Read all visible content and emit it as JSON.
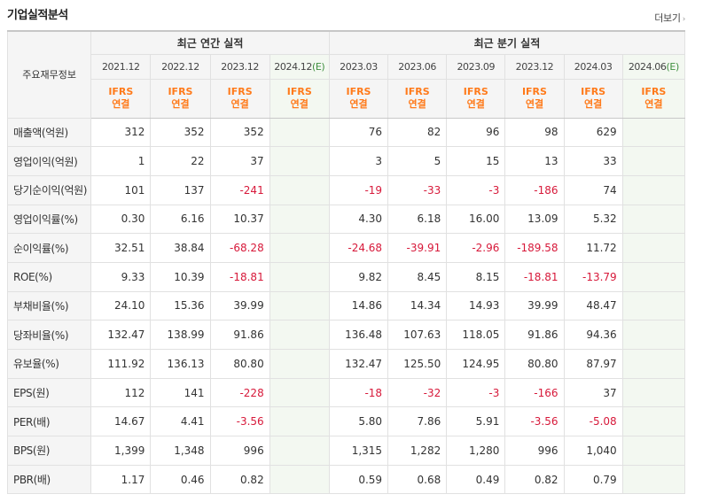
{
  "title": "기업실적분석",
  "more": "더보기",
  "row_header": "주요재무정보",
  "group_annual": "최근 연간 실적",
  "group_quarterly": "최근 분기 실적",
  "periods": [
    {
      "label": "2021.12",
      "est": ""
    },
    {
      "label": "2022.12",
      "est": ""
    },
    {
      "label": "2023.12",
      "est": ""
    },
    {
      "label": "2024.12",
      "est": "(E)"
    },
    {
      "label": "2023.03",
      "est": ""
    },
    {
      "label": "2023.06",
      "est": ""
    },
    {
      "label": "2023.09",
      "est": ""
    },
    {
      "label": "2023.12",
      "est": ""
    },
    {
      "label": "2024.03",
      "est": ""
    },
    {
      "label": "2024.06",
      "est": "(E)"
    }
  ],
  "ifrs_line1": "IFRS",
  "ifrs_line2": "연결",
  "rows": [
    {
      "label": "매출액(억원)",
      "values": [
        "312",
        "352",
        "352",
        "",
        "76",
        "82",
        "96",
        "98",
        "629",
        ""
      ]
    },
    {
      "label": "영업이익(억원)",
      "values": [
        "1",
        "22",
        "37",
        "",
        "3",
        "5",
        "15",
        "13",
        "33",
        ""
      ]
    },
    {
      "label": "당기순이익(억원)",
      "values": [
        "101",
        "137",
        "-241",
        "",
        "-19",
        "-33",
        "-3",
        "-186",
        "74",
        ""
      ]
    },
    {
      "label": "영업이익률(%)",
      "values": [
        "0.30",
        "6.16",
        "10.37",
        "",
        "4.30",
        "6.18",
        "16.00",
        "13.09",
        "5.32",
        ""
      ]
    },
    {
      "label": "순이익률(%)",
      "values": [
        "32.51",
        "38.84",
        "-68.28",
        "",
        "-24.68",
        "-39.91",
        "-2.96",
        "-189.58",
        "11.72",
        ""
      ]
    },
    {
      "label": "ROE(%)",
      "values": [
        "9.33",
        "10.39",
        "-18.81",
        "",
        "9.82",
        "8.45",
        "8.15",
        "-18.81",
        "-13.79",
        ""
      ]
    },
    {
      "label": "부채비율(%)",
      "values": [
        "24.10",
        "15.36",
        "39.99",
        "",
        "14.86",
        "14.34",
        "14.93",
        "39.99",
        "48.47",
        ""
      ]
    },
    {
      "label": "당좌비율(%)",
      "values": [
        "132.47",
        "138.99",
        "91.86",
        "",
        "136.48",
        "107.63",
        "118.05",
        "91.86",
        "94.36",
        ""
      ]
    },
    {
      "label": "유보율(%)",
      "values": [
        "111.92",
        "136.13",
        "80.80",
        "",
        "132.47",
        "125.50",
        "124.95",
        "80.80",
        "87.97",
        ""
      ]
    },
    {
      "label": "EPS(원)",
      "values": [
        "112",
        "141",
        "-228",
        "",
        "-18",
        "-32",
        "-3",
        "-166",
        "37",
        ""
      ]
    },
    {
      "label": "PER(배)",
      "values": [
        "14.67",
        "4.41",
        "-3.56",
        "",
        "5.80",
        "7.86",
        "5.91",
        "-3.56",
        "-5.08",
        ""
      ]
    },
    {
      "label": "BPS(원)",
      "values": [
        "1,399",
        "1,348",
        "996",
        "",
        "1,315",
        "1,282",
        "1,280",
        "996",
        "1,040",
        ""
      ]
    },
    {
      "label": "PBR(배)",
      "values": [
        "1.17",
        "0.46",
        "0.82",
        "",
        "0.59",
        "0.68",
        "0.49",
        "0.82",
        "0.79",
        ""
      ]
    }
  ]
}
